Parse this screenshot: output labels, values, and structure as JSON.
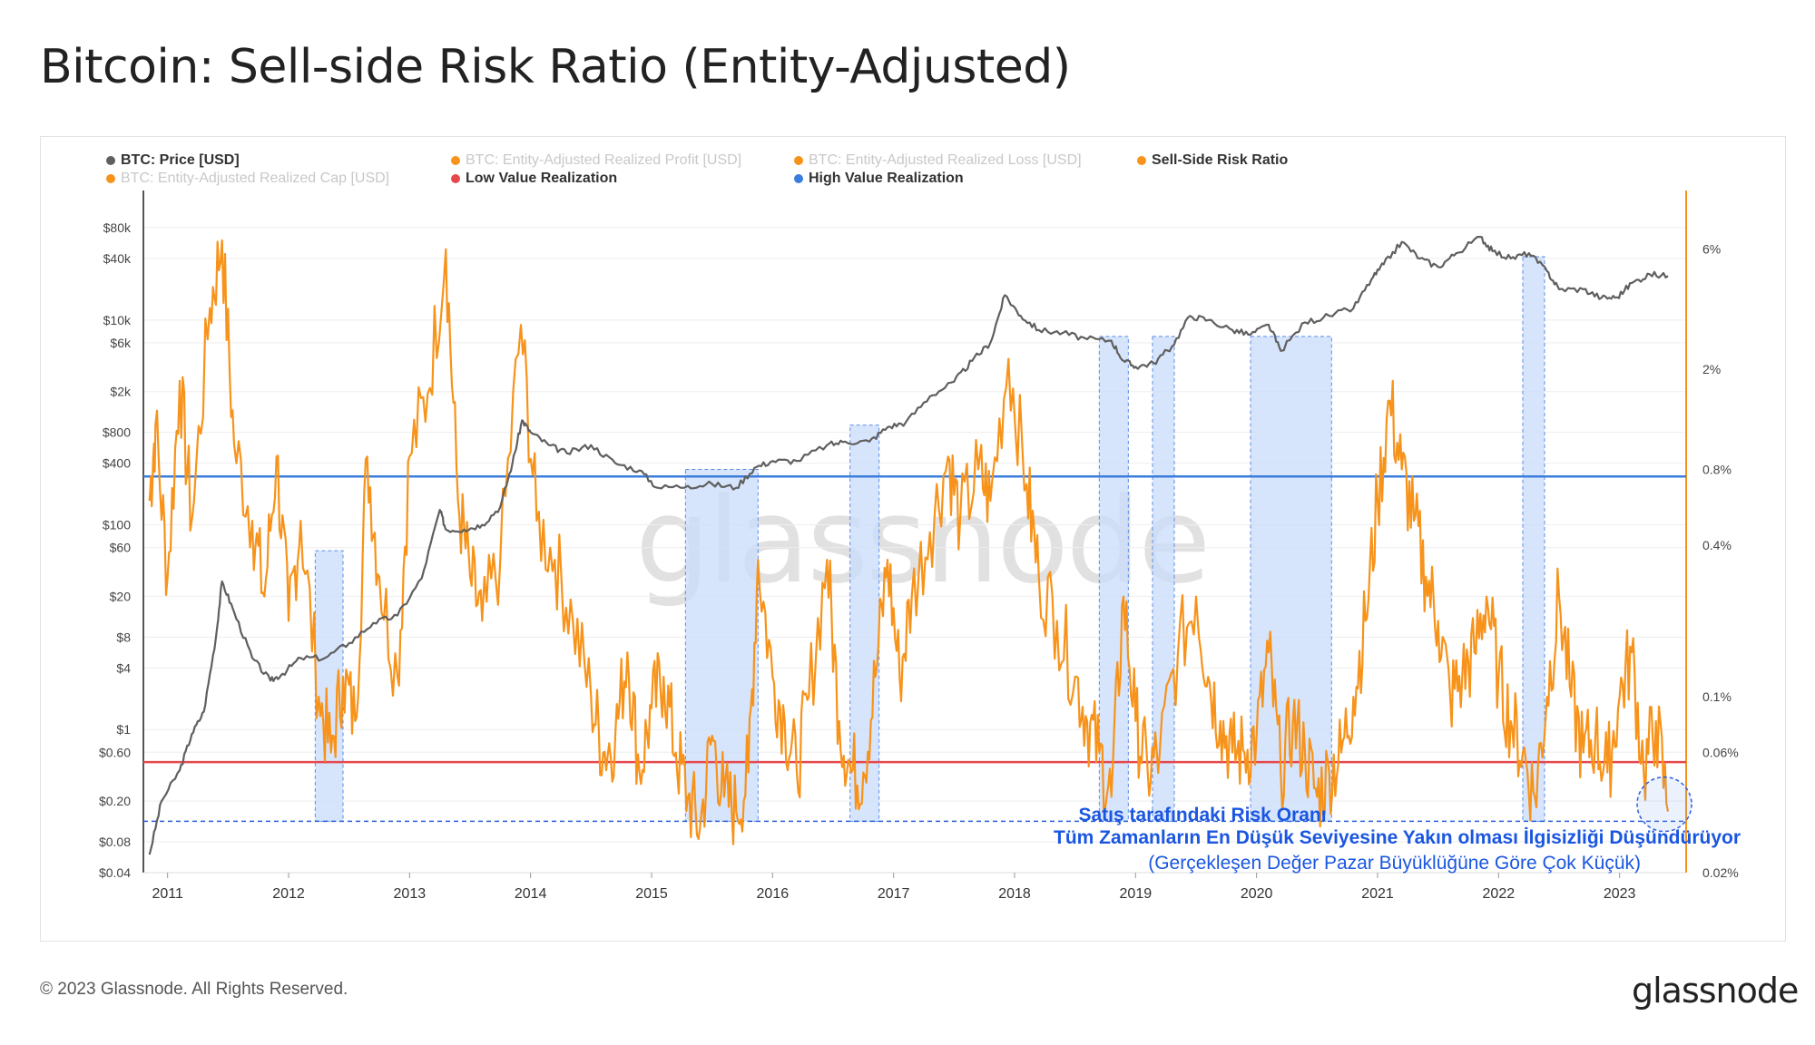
{
  "title": "Bitcoin: Sell-side Risk Ratio (Entity-Adjusted)",
  "footer": "© 2023 Glassnode. All Rights Reserved.",
  "logo": "glassnode",
  "watermark": "glassnode",
  "annotation": {
    "line1": "Satış tarafındaki Risk Oranı",
    "line2": "Tüm Zamanların En Düşük Seviyesine Yakın olması İlgisizliği Düşündürüyor",
    "line3": "(Gerçekleşen Değer Pazar Büyüklüğüne Göre Çok Küçük)"
  },
  "legend": [
    {
      "label": "BTC: Price [USD]",
      "color": "#5f5f5f",
      "muted": false
    },
    {
      "label": "BTC: Entity-Adjusted Realized Profit [USD]",
      "color": "#f7931a",
      "muted": true
    },
    {
      "label": "BTC: Entity-Adjusted Realized Loss [USD]",
      "color": "#f7931a",
      "muted": true
    },
    {
      "label": "Sell-Side Risk Ratio",
      "color": "#f7931a",
      "muted": false
    },
    {
      "label": "BTC: Entity-Adjusted Realized Cap [USD]",
      "color": "#f7931a",
      "muted": true
    },
    {
      "label": "Low Value Realization",
      "color": "#e5484d",
      "muted": false
    },
    {
      "label": "High Value Realization",
      "color": "#3b7ddd",
      "muted": false
    }
  ],
  "colors": {
    "price": "#5f5f5f",
    "ratio": "#f7931a",
    "low": "#e5484d",
    "high": "#3b7ddd",
    "shade": "#c9dcfb",
    "shade_border": "#5a8ee8"
  },
  "chart_data": {
    "type": "line",
    "x_ticks": [
      "2011",
      "2012",
      "2013",
      "2014",
      "2015",
      "2016",
      "2017",
      "2018",
      "2019",
      "2020",
      "2021",
      "2022",
      "2023"
    ],
    "y_left": {
      "label": "BTC: Price [USD]",
      "scale": "log",
      "range": [
        0.04,
        100000
      ],
      "ticks": [
        {
          "v": 80000,
          "l": "$80k"
        },
        {
          "v": 40000,
          "l": "$40k"
        },
        {
          "v": 10000,
          "l": "$10k"
        },
        {
          "v": 6000,
          "l": "$6k"
        },
        {
          "v": 2000,
          "l": "$2k"
        },
        {
          "v": 800,
          "l": "$800"
        },
        {
          "v": 400,
          "l": "$400"
        },
        {
          "v": 100,
          "l": "$100"
        },
        {
          "v": 60,
          "l": "$60"
        },
        {
          "v": 20,
          "l": "$20"
        },
        {
          "v": 8,
          "l": "$8"
        },
        {
          "v": 4,
          "l": "$4"
        },
        {
          "v": 1,
          "l": "$1"
        },
        {
          "v": 0.6,
          "l": "$0.60"
        },
        {
          "v": 0.2,
          "l": "$0.20"
        },
        {
          "v": 0.08,
          "l": "$0.08"
        },
        {
          "v": 0.04,
          "l": "$0.04"
        }
      ]
    },
    "y_right": {
      "label": "Sell-Side Risk Ratio",
      "scale": "log",
      "range": [
        0.02,
        8
      ],
      "ticks": [
        {
          "v": 6,
          "l": "6%"
        },
        {
          "v": 2,
          "l": "2%"
        },
        {
          "v": 0.8,
          "l": "0.8%"
        },
        {
          "v": 0.4,
          "l": "0.4%"
        },
        {
          "v": 0.1,
          "l": "0.1%"
        },
        {
          "v": 0.06,
          "l": "0.06%"
        },
        {
          "v": 0.02,
          "l": "0.02%"
        }
      ]
    },
    "thresholds": {
      "high_value_realization": 0.75,
      "low_value_realization": 0.055,
      "floor": 0.032
    },
    "shaded_periods": [
      {
        "start": 2012.22,
        "end": 2012.45,
        "top_ratio": 0.38
      },
      {
        "start": 2015.28,
        "end": 2015.88,
        "top_ratio": 0.8
      },
      {
        "start": 2016.64,
        "end": 2016.88,
        "top_ratio": 1.2
      },
      {
        "start": 2018.7,
        "end": 2018.94,
        "top_ratio": 2.7
      },
      {
        "start": 2019.14,
        "end": 2019.32,
        "top_ratio": 2.7
      },
      {
        "start": 2019.95,
        "end": 2020.62,
        "top_ratio": 2.7
      },
      {
        "start": 2022.2,
        "end": 2022.38,
        "top_ratio": 5.6
      }
    ],
    "series": [
      {
        "name": "BTC: Price [USD]",
        "axis": "left",
        "points": [
          [
            2010.85,
            0.06
          ],
          [
            2010.95,
            0.2
          ],
          [
            2011.1,
            0.4
          ],
          [
            2011.2,
            0.9
          ],
          [
            2011.3,
            1.5
          ],
          [
            2011.4,
            8
          ],
          [
            2011.45,
            28
          ],
          [
            2011.55,
            14
          ],
          [
            2011.7,
            5
          ],
          [
            2011.85,
            3
          ],
          [
            2011.95,
            3.5
          ],
          [
            2012.1,
            5
          ],
          [
            2012.3,
            5
          ],
          [
            2012.5,
            7
          ],
          [
            2012.7,
            11
          ],
          [
            2012.9,
            13
          ],
          [
            2013.1,
            30
          ],
          [
            2013.25,
            140
          ],
          [
            2013.3,
            90
          ],
          [
            2013.45,
            90
          ],
          [
            2013.6,
            100
          ],
          [
            2013.75,
            150
          ],
          [
            2013.85,
            400
          ],
          [
            2013.93,
            1050
          ],
          [
            2014.0,
            800
          ],
          [
            2014.15,
            600
          ],
          [
            2014.3,
            500
          ],
          [
            2014.5,
            600
          ],
          [
            2014.7,
            400
          ],
          [
            2014.9,
            340
          ],
          [
            2015.05,
            230
          ],
          [
            2015.3,
            240
          ],
          [
            2015.5,
            250
          ],
          [
            2015.7,
            230
          ],
          [
            2015.85,
            360
          ],
          [
            2016.0,
            420
          ],
          [
            2016.2,
            420
          ],
          [
            2016.45,
            600
          ],
          [
            2016.6,
            650
          ],
          [
            2016.8,
            650
          ],
          [
            2016.95,
            900
          ],
          [
            2017.1,
            1000
          ],
          [
            2017.3,
            1800
          ],
          [
            2017.5,
            2500
          ],
          [
            2017.65,
            4000
          ],
          [
            2017.8,
            6000
          ],
          [
            2017.92,
            17500
          ],
          [
            2018.05,
            11000
          ],
          [
            2018.2,
            8000
          ],
          [
            2018.4,
            7500
          ],
          [
            2018.6,
            6500
          ],
          [
            2018.8,
            6300
          ],
          [
            2018.9,
            4000
          ],
          [
            2019.0,
            3500
          ],
          [
            2019.15,
            3800
          ],
          [
            2019.3,
            5500
          ],
          [
            2019.45,
            11000
          ],
          [
            2019.6,
            10000
          ],
          [
            2019.8,
            8000
          ],
          [
            2019.95,
            7200
          ],
          [
            2020.1,
            9000
          ],
          [
            2020.2,
            5000
          ],
          [
            2020.4,
            9500
          ],
          [
            2020.6,
            11000
          ],
          [
            2020.8,
            13000
          ],
          [
            2020.95,
            25000
          ],
          [
            2021.05,
            35000
          ],
          [
            2021.2,
            58000
          ],
          [
            2021.35,
            40000
          ],
          [
            2021.5,
            33000
          ],
          [
            2021.65,
            45000
          ],
          [
            2021.85,
            65000
          ],
          [
            2021.95,
            47000
          ],
          [
            2022.1,
            40000
          ],
          [
            2022.25,
            45000
          ],
          [
            2022.4,
            30000
          ],
          [
            2022.5,
            20000
          ],
          [
            2022.7,
            20000
          ],
          [
            2022.85,
            16500
          ],
          [
            2022.98,
            16700
          ],
          [
            2023.1,
            23000
          ],
          [
            2023.25,
            28000
          ],
          [
            2023.4,
            27000
          ]
        ]
      },
      {
        "name": "Sell-Side Risk Ratio",
        "axis": "right",
        "points": [
          [
            2010.85,
            0.6
          ],
          [
            2010.9,
            1.2
          ],
          [
            2011.0,
            0.3
          ],
          [
            2011.1,
            1.8
          ],
          [
            2011.2,
            0.5
          ],
          [
            2011.35,
            3.5
          ],
          [
            2011.45,
            6.5
          ],
          [
            2011.55,
            1.0
          ],
          [
            2011.7,
            0.5
          ],
          [
            2011.8,
            0.25
          ],
          [
            2011.9,
            0.9
          ],
          [
            2012.0,
            0.2
          ],
          [
            2012.1,
            0.5
          ],
          [
            2012.25,
            0.1
          ],
          [
            2012.35,
            0.06
          ],
          [
            2012.45,
            0.12
          ],
          [
            2012.55,
            0.08
          ],
          [
            2012.65,
            0.9
          ],
          [
            2012.75,
            0.3
          ],
          [
            2012.9,
            0.12
          ],
          [
            2013.0,
            0.9
          ],
          [
            2013.15,
            1.6
          ],
          [
            2013.3,
            6.0
          ],
          [
            2013.4,
            0.6
          ],
          [
            2013.5,
            0.3
          ],
          [
            2013.6,
            0.2
          ],
          [
            2013.75,
            0.35
          ],
          [
            2013.92,
            3.0
          ],
          [
            2014.05,
            0.5
          ],
          [
            2014.2,
            0.35
          ],
          [
            2014.35,
            0.2
          ],
          [
            2014.5,
            0.1
          ],
          [
            2014.6,
            0.06
          ],
          [
            2014.7,
            0.07
          ],
          [
            2014.8,
            0.15
          ],
          [
            2014.9,
            0.05
          ],
          [
            2015.0,
            0.09
          ],
          [
            2015.1,
            0.12
          ],
          [
            2015.2,
            0.06
          ],
          [
            2015.3,
            0.04
          ],
          [
            2015.4,
            0.03
          ],
          [
            2015.5,
            0.07
          ],
          [
            2015.6,
            0.04
          ],
          [
            2015.7,
            0.035
          ],
          [
            2015.8,
            0.05
          ],
          [
            2015.88,
            0.35
          ],
          [
            2016.0,
            0.12
          ],
          [
            2016.1,
            0.08
          ],
          [
            2016.2,
            0.05
          ],
          [
            2016.3,
            0.1
          ],
          [
            2016.45,
            0.35
          ],
          [
            2016.55,
            0.08
          ],
          [
            2016.65,
            0.05
          ],
          [
            2016.75,
            0.05
          ],
          [
            2016.85,
            0.12
          ],
          [
            2016.95,
            0.35
          ],
          [
            2017.05,
            0.12
          ],
          [
            2017.15,
            0.25
          ],
          [
            2017.3,
            0.45
          ],
          [
            2017.45,
            0.9
          ],
          [
            2017.55,
            0.5
          ],
          [
            2017.7,
            0.8
          ],
          [
            2017.8,
            0.6
          ],
          [
            2017.95,
            2.2
          ],
          [
            2018.1,
            0.7
          ],
          [
            2018.2,
            0.3
          ],
          [
            2018.35,
            0.2
          ],
          [
            2018.5,
            0.12
          ],
          [
            2018.6,
            0.08
          ],
          [
            2018.7,
            0.06
          ],
          [
            2018.8,
            0.04
          ],
          [
            2018.9,
            0.25
          ],
          [
            2019.0,
            0.08
          ],
          [
            2019.1,
            0.05
          ],
          [
            2019.2,
            0.06
          ],
          [
            2019.35,
            0.15
          ],
          [
            2019.5,
            0.25
          ],
          [
            2019.6,
            0.12
          ],
          [
            2019.7,
            0.08
          ],
          [
            2019.8,
            0.06
          ],
          [
            2019.9,
            0.06
          ],
          [
            2020.0,
            0.07
          ],
          [
            2020.1,
            0.15
          ],
          [
            2020.2,
            0.05
          ],
          [
            2020.3,
            0.08
          ],
          [
            2020.4,
            0.06
          ],
          [
            2020.5,
            0.04
          ],
          [
            2020.6,
            0.05
          ],
          [
            2020.7,
            0.06
          ],
          [
            2020.8,
            0.1
          ],
          [
            2020.9,
            0.2
          ],
          [
            2021.0,
            0.6
          ],
          [
            2021.1,
            1.5
          ],
          [
            2021.2,
            0.8
          ],
          [
            2021.3,
            0.5
          ],
          [
            2021.4,
            0.3
          ],
          [
            2021.5,
            0.2
          ],
          [
            2021.6,
            0.1
          ],
          [
            2021.7,
            0.12
          ],
          [
            2021.8,
            0.15
          ],
          [
            2021.9,
            0.25
          ],
          [
            2022.0,
            0.12
          ],
          [
            2022.1,
            0.08
          ],
          [
            2022.2,
            0.06
          ],
          [
            2022.3,
            0.04
          ],
          [
            2022.4,
            0.1
          ],
          [
            2022.5,
            0.25
          ],
          [
            2022.6,
            0.1
          ],
          [
            2022.7,
            0.06
          ],
          [
            2022.8,
            0.07
          ],
          [
            2022.9,
            0.05
          ],
          [
            2023.0,
            0.1
          ],
          [
            2023.1,
            0.15
          ],
          [
            2023.2,
            0.05
          ],
          [
            2023.3,
            0.08
          ],
          [
            2023.4,
            0.035
          ]
        ]
      }
    ]
  }
}
